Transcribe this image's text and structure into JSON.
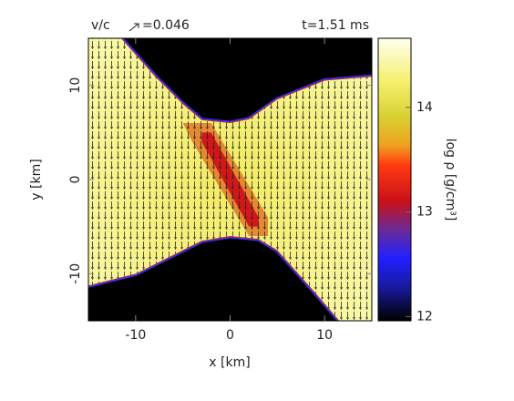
{
  "chart_data": {
    "type": "heatmap",
    "annotations": {
      "velocity": "v/c",
      "velocity_scale": "=0.046",
      "time": "t=1.51 ms"
    },
    "xlabel": "x [km]",
    "ylabel": "y [km]",
    "xlim": [
      -15,
      15
    ],
    "ylim": [
      -15,
      15
    ],
    "xticks": [
      -10,
      0,
      10
    ],
    "yticks": [
      -10,
      0,
      10
    ],
    "colorbar": {
      "label": "log ρ [g/cm³]",
      "lim": [
        11.96,
        14.66
      ],
      "ticks": [
        12,
        13,
        14
      ]
    }
  }
}
